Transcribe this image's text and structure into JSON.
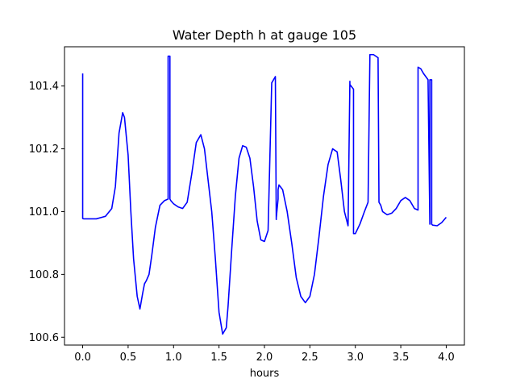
{
  "chart_data": {
    "type": "line",
    "title": "Water Depth h at gauge 105",
    "xlabel": "hours",
    "ylabel": "",
    "xlim": [
      -0.2,
      4.2
    ],
    "ylim": [
      100.575,
      101.525
    ],
    "xticks": [
      0.0,
      0.5,
      1.0,
      1.5,
      2.0,
      2.5,
      3.0,
      3.5,
      4.0
    ],
    "xtick_labels": [
      "0.0",
      "0.5",
      "1.0",
      "1.5",
      "2.0",
      "2.5",
      "3.0",
      "3.5",
      "4.0"
    ],
    "yticks": [
      100.6,
      100.8,
      101.0,
      101.2,
      101.4
    ],
    "ytick_labels": [
      "100.6",
      "100.8",
      "101.0",
      "101.2",
      "101.4"
    ],
    "grid": false,
    "legend": "none",
    "series": [
      {
        "color": "#0000ff",
        "x": [
          0.0,
          0.0,
          0.01,
          0.15,
          0.25,
          0.32,
          0.36,
          0.4,
          0.44,
          0.46,
          0.5,
          0.53,
          0.56,
          0.6,
          0.63,
          0.66,
          0.68,
          0.7,
          0.73,
          0.76,
          0.8,
          0.85,
          0.9,
          0.94,
          0.94,
          0.95,
          0.96,
          0.96,
          0.97,
          1.0,
          1.05,
          1.1,
          1.15,
          1.2,
          1.25,
          1.3,
          1.34,
          1.38,
          1.42,
          1.46,
          1.5,
          1.54,
          1.58,
          1.6,
          1.64,
          1.68,
          1.72,
          1.76,
          1.8,
          1.84,
          1.88,
          1.92,
          1.96,
          2.0,
          2.04,
          2.08,
          2.12,
          2.13,
          2.13,
          2.15,
          2.15,
          2.16,
          2.2,
          2.25,
          2.3,
          2.35,
          2.4,
          2.45,
          2.5,
          2.55,
          2.6,
          2.65,
          2.7,
          2.75,
          2.8,
          2.84,
          2.88,
          2.92,
          2.94,
          2.94,
          2.98,
          2.98,
          3.0,
          3.05,
          3.1,
          3.14,
          3.16,
          3.16,
          3.2,
          3.25,
          3.26,
          3.28,
          3.3,
          3.35,
          3.4,
          3.45,
          3.5,
          3.55,
          3.6,
          3.65,
          3.69,
          3.69,
          3.72,
          3.75,
          3.8,
          3.82,
          3.82,
          3.84,
          3.84,
          3.85,
          3.9,
          3.95,
          4.0
        ],
        "y": [
          101.44,
          100.978,
          100.977,
          100.977,
          100.985,
          101.01,
          101.08,
          101.25,
          101.315,
          101.3,
          101.18,
          101.0,
          100.85,
          100.73,
          100.69,
          100.74,
          100.77,
          100.78,
          100.8,
          100.86,
          100.95,
          101.02,
          101.035,
          101.04,
          101.495,
          101.495,
          101.495,
          101.04,
          101.035,
          101.025,
          101.015,
          101.01,
          101.03,
          101.12,
          101.22,
          101.245,
          101.2,
          101.1,
          101.0,
          100.85,
          100.68,
          100.61,
          100.63,
          100.7,
          100.88,
          101.05,
          101.17,
          101.21,
          101.205,
          101.17,
          101.08,
          100.97,
          100.91,
          100.905,
          100.94,
          101.41,
          101.43,
          100.975,
          100.98,
          101.04,
          101.07,
          101.085,
          101.07,
          101.0,
          100.9,
          100.79,
          100.73,
          100.71,
          100.73,
          100.8,
          100.92,
          101.05,
          101.15,
          101.2,
          101.19,
          101.1,
          101.0,
          100.955,
          101.415,
          101.405,
          101.39,
          100.93,
          100.93,
          100.96,
          101.0,
          101.03,
          101.49,
          101.5,
          101.5,
          101.49,
          101.03,
          101.02,
          101.0,
          100.99,
          100.995,
          101.01,
          101.035,
          101.045,
          101.035,
          101.01,
          101.005,
          101.46,
          101.455,
          101.44,
          101.42,
          100.96,
          101.42,
          101.42,
          100.96,
          100.957,
          100.955,
          100.965,
          100.982
        ]
      }
    ]
  }
}
